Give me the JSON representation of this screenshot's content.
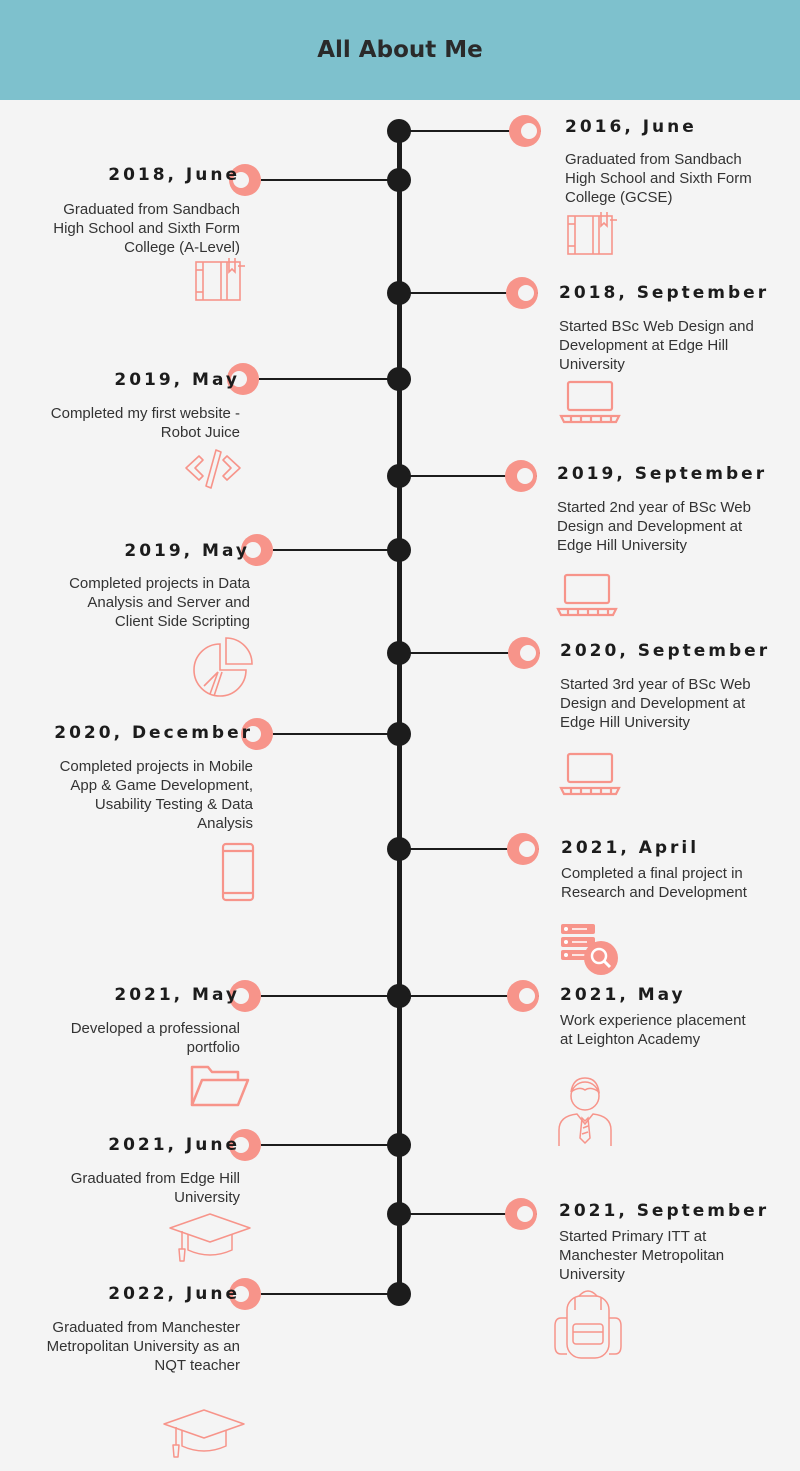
{
  "title": "All About Me",
  "colors": {
    "header": "#7ec1cd",
    "accent": "#f7948a",
    "line": "#1c1c1c",
    "background": "#f4f4f4"
  },
  "events": [
    {
      "side": "right",
      "date": "2016, June",
      "desc": "Graduated from Sandbach High School and Sixth Form College (GCSE)",
      "icon": "book-icon"
    },
    {
      "side": "left",
      "date": "2018, June",
      "desc": "Graduated from Sandbach High School and Sixth Form College (A-Level)",
      "icon": "book-icon"
    },
    {
      "side": "right",
      "date": "2018, September",
      "desc": "Started BSc Web Design and Development at Edge Hill University",
      "icon": "laptop-icon"
    },
    {
      "side": "left",
      "date": "2019, May",
      "desc": "Completed my first website - Robot Juice",
      "icon": "code-icon"
    },
    {
      "side": "right",
      "date": "2019, September",
      "desc": "Started 2nd year of BSc Web Design and Development at Edge Hill University",
      "icon": "laptop-icon"
    },
    {
      "side": "left",
      "date": "2019, May",
      "desc": "Completed projects in Data Analysis and Server and Client Side Scripting",
      "icon": "pie-chart-icon"
    },
    {
      "side": "right",
      "date": "2020, September",
      "desc": "Started 3rd year of BSc Web Design and Development at Edge Hill University",
      "icon": "laptop-icon"
    },
    {
      "side": "left",
      "date": "2020, December",
      "desc": "Completed projects in Mobile App & Game Development, Usability Testing & Data Analysis",
      "icon": "phone-icon"
    },
    {
      "side": "right",
      "date": "2021, April",
      "desc": "Completed a final project in Research and Development",
      "icon": "server-search-icon"
    },
    {
      "side": "left",
      "date": "2021, May",
      "desc": "Developed a professional portfolio",
      "icon": "folder-icon"
    },
    {
      "side": "right",
      "date": "2021, May",
      "desc": "Work experience placement at Leighton Academy",
      "icon": "teacher-icon"
    },
    {
      "side": "left",
      "date": "2021, June",
      "desc": "Graduated from Edge Hill University",
      "icon": "graduation-cap-icon"
    },
    {
      "side": "right",
      "date": "2021, September",
      "desc": "Started Primary ITT at Manchester Metropolitan University",
      "icon": "backpack-icon"
    },
    {
      "side": "left",
      "date": "2022, June",
      "desc": "Graduated from Manchester Metropolitan University as an NQT teacher",
      "icon": "graduation-cap-icon"
    }
  ]
}
